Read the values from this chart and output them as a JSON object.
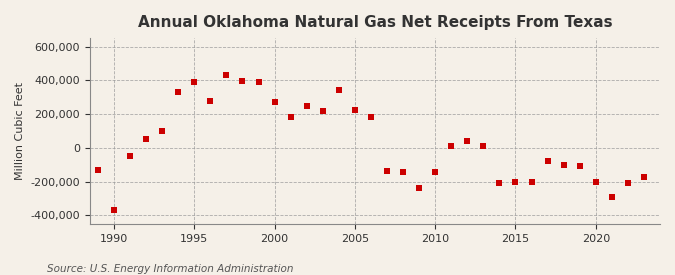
{
  "title": "Annual Oklahoma Natural Gas Net Receipts From Texas",
  "ylabel": "Million Cubic Feet",
  "source": "Source: U.S. Energy Information Administration",
  "background_color": "#f5f0e8",
  "marker_color": "#cc0000",
  "years": [
    1989,
    1990,
    1991,
    1992,
    1993,
    1994,
    1995,
    1996,
    1997,
    1998,
    1999,
    2000,
    2001,
    2002,
    2003,
    2004,
    2005,
    2006,
    2007,
    2008,
    2009,
    2010,
    2011,
    2012,
    2013,
    2014,
    2015,
    2016,
    2017,
    2018,
    2019,
    2020,
    2021,
    2022,
    2023
  ],
  "values": [
    -130000,
    -370000,
    -50000,
    55000,
    100000,
    330000,
    390000,
    275000,
    430000,
    395000,
    390000,
    270000,
    180000,
    245000,
    220000,
    340000,
    225000,
    185000,
    -140000,
    -145000,
    -240000,
    -145000,
    10000,
    40000,
    10000,
    -210000,
    -205000,
    -205000,
    -80000,
    -100000,
    -105000,
    -205000,
    -290000,
    -210000,
    -170000
  ],
  "xlim": [
    1988.5,
    2024
  ],
  "ylim": [
    -450000,
    650000
  ],
  "yticks": [
    -400000,
    -200000,
    0,
    200000,
    400000,
    600000
  ],
  "xticks": [
    1990,
    1995,
    2000,
    2005,
    2010,
    2015,
    2020
  ],
  "grid_color": "#999999",
  "title_fontsize": 11,
  "label_fontsize": 8,
  "tick_fontsize": 8,
  "source_fontsize": 7.5
}
